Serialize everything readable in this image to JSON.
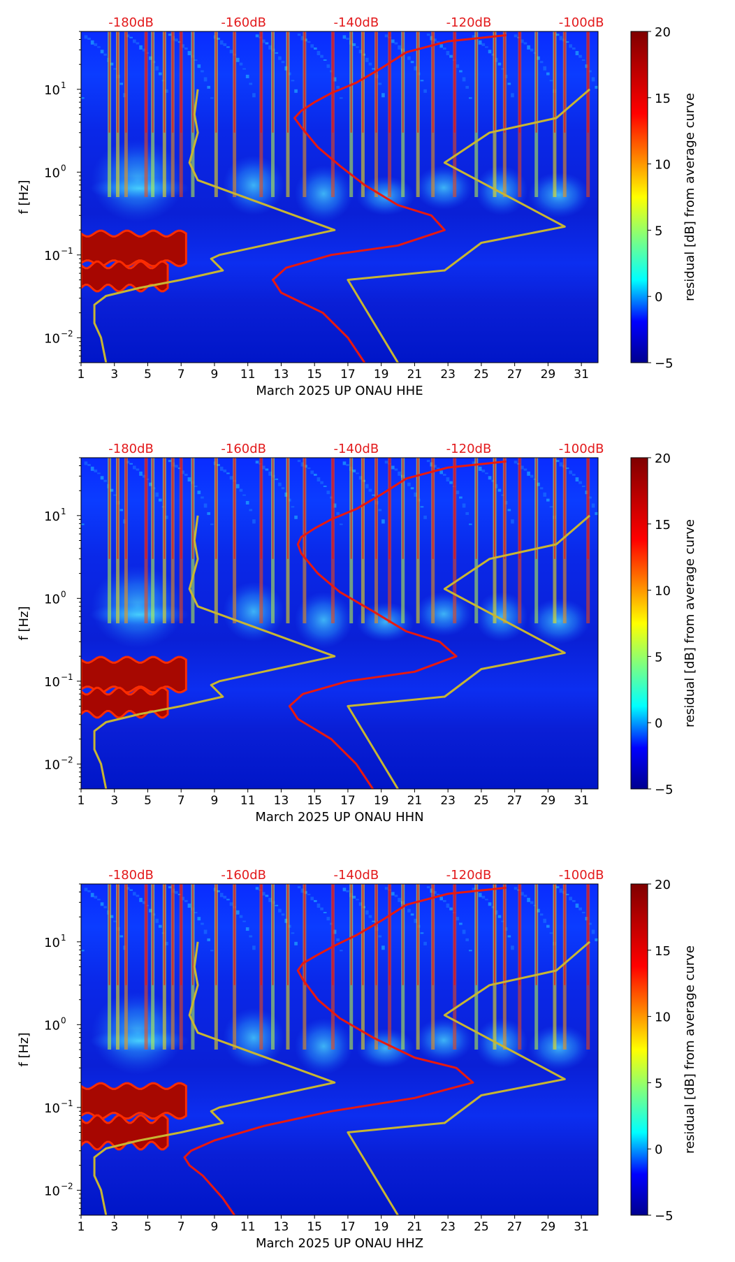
{
  "colors": {
    "background_low": "#00008b",
    "noise_model_lines": "#c8b632",
    "psd_curve": "#e8190f",
    "db_labels": "#e31a1c",
    "axis": "#000000",
    "storm_band": "#a40000"
  },
  "colorbar": {
    "label": "residual [dB] from average curve",
    "min": -5,
    "max": 20,
    "ticks": [
      "20",
      "15",
      "10",
      "5",
      "0",
      "−5"
    ],
    "stops": [
      {
        "v": -5,
        "c": "#00008f"
      },
      {
        "v": -1.9,
        "c": "#0000ff"
      },
      {
        "v": 1.25,
        "c": "#00ffff"
      },
      {
        "v": 4.4,
        "c": "#7fff7f"
      },
      {
        "v": 7.5,
        "c": "#ffff00"
      },
      {
        "v": 10.6,
        "c": "#ff7f00"
      },
      {
        "v": 13.8,
        "c": "#ff0000"
      },
      {
        "v": 20,
        "c": "#7f0000"
      }
    ]
  },
  "chart_data": [
    {
      "type": "heatmap",
      "title": "",
      "xlabel": "March 2025 UP ONAU  HHE",
      "ylabel": "f [Hz]",
      "x_ticks": [
        "1",
        "3",
        "5",
        "7",
        "9",
        "11",
        "13",
        "15",
        "17",
        "19",
        "21",
        "23",
        "25",
        "27",
        "29",
        "31"
      ],
      "y_ticks": [
        {
          "value": 10,
          "label": "10",
          "exp": "1"
        },
        {
          "value": 1,
          "label": "10",
          "exp": "0"
        },
        {
          "value": 0.1,
          "label": "10",
          "exp": "−1"
        },
        {
          "value": 0.01,
          "label": "10",
          "exp": "−2"
        }
      ],
      "xlim": [
        1,
        32
      ],
      "ylim": [
        0.005,
        50
      ],
      "top_labels": [
        "-180dB",
        "-160dB",
        "-140dB",
        "-120dB",
        "-100dB"
      ],
      "noise_model_low": [
        [
          2.5,
          0.005
        ],
        [
          2.2,
          0.01
        ],
        [
          1.8,
          0.015
        ],
        [
          1.8,
          0.025
        ],
        [
          2.5,
          0.032
        ],
        [
          4.5,
          0.04
        ],
        [
          7.0,
          0.05
        ],
        [
          9.5,
          0.065
        ],
        [
          8.8,
          0.09
        ],
        [
          9.3,
          0.1
        ],
        [
          16.2,
          0.2
        ],
        [
          8.0,
          0.8
        ],
        [
          7.5,
          1.3
        ],
        [
          8.0,
          3.0
        ],
        [
          7.8,
          5.0
        ],
        [
          8.0,
          10.0
        ]
      ],
      "noise_model_high": [
        [
          20.0,
          0.005
        ],
        [
          17.0,
          0.05
        ],
        [
          22.8,
          0.065
        ],
        [
          25.0,
          0.14
        ],
        [
          30.0,
          0.22
        ],
        [
          22.8,
          1.3
        ],
        [
          25.5,
          3.0
        ],
        [
          29.5,
          4.5
        ],
        [
          31.5,
          10.0
        ]
      ],
      "psd_curve": [
        [
          18.0,
          0.005
        ],
        [
          17.0,
          0.01
        ],
        [
          15.5,
          0.02
        ],
        [
          13.0,
          0.035
        ],
        [
          12.5,
          0.05
        ],
        [
          13.3,
          0.07
        ],
        [
          16.0,
          0.1
        ],
        [
          20.0,
          0.13
        ],
        [
          22.8,
          0.2
        ],
        [
          22.0,
          0.3
        ],
        [
          20.0,
          0.4
        ],
        [
          18.0,
          0.7
        ],
        [
          16.5,
          1.2
        ],
        [
          15.2,
          2.0
        ],
        [
          14.2,
          3.5
        ],
        [
          13.8,
          4.5
        ],
        [
          14.2,
          5.5
        ],
        [
          15.0,
          7.0
        ],
        [
          16.0,
          9.0
        ],
        [
          17.5,
          12.0
        ],
        [
          19.0,
          18.0
        ],
        [
          20.5,
          28.0
        ],
        [
          23.0,
          38.0
        ],
        [
          26.5,
          45.0
        ]
      ],
      "storm_bands": [
        {
          "x0": 1,
          "x1": 7.3,
          "f": 0.12,
          "h": 0.18,
          "amp": 0.2
        },
        {
          "x0": 1,
          "x1": 6.2,
          "f": 0.055,
          "h": 0.14,
          "amp": 0.3
        }
      ],
      "vertical_events": [
        2.7,
        3.2,
        3.7,
        4.9,
        5.3,
        6.0,
        6.5,
        7.0,
        7.7,
        9.1,
        10.2,
        11.8,
        12.5,
        13.4,
        14.4,
        16.1,
        17.2,
        17.9,
        18.7,
        19.5,
        20.3,
        21.2,
        22.1,
        23.4,
        24.7,
        25.8,
        26.4,
        27.3,
        28.3,
        29.4,
        30.0,
        31.4
      ]
    },
    {
      "type": "heatmap",
      "title": "",
      "xlabel": "March 2025 UP ONAU  HHN",
      "ylabel": "f [Hz]",
      "x_ticks": [
        "1",
        "3",
        "5",
        "7",
        "9",
        "11",
        "13",
        "15",
        "17",
        "19",
        "21",
        "23",
        "25",
        "27",
        "29",
        "31"
      ],
      "y_ticks": [
        {
          "value": 10,
          "label": "10",
          "exp": "1"
        },
        {
          "value": 1,
          "label": "10",
          "exp": "0"
        },
        {
          "value": 0.1,
          "label": "10",
          "exp": "−1"
        },
        {
          "value": 0.01,
          "label": "10",
          "exp": "−2"
        }
      ],
      "xlim": [
        1,
        32
      ],
      "ylim": [
        0.005,
        50
      ],
      "top_labels": [
        "-180dB",
        "-160dB",
        "-140dB",
        "-120dB",
        "-100dB"
      ],
      "noise_model_low": [
        [
          2.5,
          0.005
        ],
        [
          2.2,
          0.01
        ],
        [
          1.8,
          0.015
        ],
        [
          1.8,
          0.025
        ],
        [
          2.5,
          0.032
        ],
        [
          4.5,
          0.04
        ],
        [
          7.0,
          0.05
        ],
        [
          9.5,
          0.065
        ],
        [
          8.8,
          0.09
        ],
        [
          9.3,
          0.1
        ],
        [
          16.2,
          0.2
        ],
        [
          8.0,
          0.8
        ],
        [
          7.5,
          1.3
        ],
        [
          8.0,
          3.0
        ],
        [
          7.8,
          5.0
        ],
        [
          8.0,
          10.0
        ]
      ],
      "noise_model_high": [
        [
          20.0,
          0.005
        ],
        [
          17.0,
          0.05
        ],
        [
          22.8,
          0.065
        ],
        [
          25.0,
          0.14
        ],
        [
          30.0,
          0.22
        ],
        [
          22.8,
          1.3
        ],
        [
          25.5,
          3.0
        ],
        [
          29.5,
          4.5
        ],
        [
          31.5,
          10.0
        ]
      ],
      "psd_curve": [
        [
          18.5,
          0.005
        ],
        [
          17.5,
          0.01
        ],
        [
          16.0,
          0.02
        ],
        [
          14.0,
          0.035
        ],
        [
          13.5,
          0.05
        ],
        [
          14.3,
          0.07
        ],
        [
          17.0,
          0.1
        ],
        [
          21.0,
          0.13
        ],
        [
          23.5,
          0.2
        ],
        [
          22.5,
          0.3
        ],
        [
          20.5,
          0.4
        ],
        [
          18.5,
          0.7
        ],
        [
          16.5,
          1.2
        ],
        [
          15.2,
          2.0
        ],
        [
          14.2,
          3.5
        ],
        [
          14.0,
          4.5
        ],
        [
          14.2,
          5.5
        ],
        [
          15.0,
          7.0
        ],
        [
          16.0,
          9.0
        ],
        [
          17.5,
          12.0
        ],
        [
          19.0,
          18.0
        ],
        [
          20.5,
          28.0
        ],
        [
          23.0,
          38.0
        ],
        [
          26.5,
          45.0
        ]
      ],
      "storm_bands": [
        {
          "x0": 1,
          "x1": 7.3,
          "f": 0.12,
          "h": 0.18,
          "amp": 0.2
        },
        {
          "x0": 1,
          "x1": 6.2,
          "f": 0.055,
          "h": 0.14,
          "amp": 0.3
        }
      ],
      "vertical_events": [
        2.7,
        3.2,
        3.7,
        4.9,
        5.3,
        6.0,
        6.5,
        7.0,
        7.7,
        9.1,
        10.2,
        11.8,
        12.5,
        13.4,
        14.4,
        16.1,
        17.2,
        17.9,
        18.7,
        19.5,
        20.3,
        21.2,
        22.1,
        23.4,
        24.7,
        25.8,
        26.4,
        27.3,
        28.3,
        29.4,
        30.0,
        31.4
      ]
    },
    {
      "type": "heatmap",
      "title": "",
      "xlabel": "March 2025 UP ONAU  HHZ",
      "ylabel": "f [Hz]",
      "x_ticks": [
        "1",
        "3",
        "5",
        "7",
        "9",
        "11",
        "13",
        "15",
        "17",
        "19",
        "21",
        "23",
        "25",
        "27",
        "29",
        "31"
      ],
      "y_ticks": [
        {
          "value": 10,
          "label": "10",
          "exp": "1"
        },
        {
          "value": 1,
          "label": "10",
          "exp": "0"
        },
        {
          "value": 0.1,
          "label": "10",
          "exp": "−1"
        },
        {
          "value": 0.01,
          "label": "10",
          "exp": "−2"
        }
      ],
      "xlim": [
        1,
        32
      ],
      "ylim": [
        0.005,
        50
      ],
      "top_labels": [
        "-180dB",
        "-160dB",
        "-140dB",
        "-120dB",
        "-100dB"
      ],
      "noise_model_low": [
        [
          2.5,
          0.005
        ],
        [
          2.2,
          0.01
        ],
        [
          1.8,
          0.015
        ],
        [
          1.8,
          0.025
        ],
        [
          2.5,
          0.032
        ],
        [
          4.5,
          0.04
        ],
        [
          7.0,
          0.05
        ],
        [
          9.5,
          0.065
        ],
        [
          8.8,
          0.09
        ],
        [
          9.3,
          0.1
        ],
        [
          16.2,
          0.2
        ],
        [
          8.0,
          0.8
        ],
        [
          7.5,
          1.3
        ],
        [
          8.0,
          3.0
        ],
        [
          7.8,
          5.0
        ],
        [
          8.0,
          10.0
        ]
      ],
      "noise_model_high": [
        [
          20.0,
          0.005
        ],
        [
          17.0,
          0.05
        ],
        [
          22.8,
          0.065
        ],
        [
          25.0,
          0.14
        ],
        [
          30.0,
          0.22
        ],
        [
          22.8,
          1.3
        ],
        [
          25.5,
          3.0
        ],
        [
          29.5,
          4.5
        ],
        [
          31.5,
          10.0
        ]
      ],
      "psd_curve": [
        [
          10.2,
          0.005
        ],
        [
          9.5,
          0.008
        ],
        [
          8.3,
          0.015
        ],
        [
          7.5,
          0.02
        ],
        [
          7.2,
          0.025
        ],
        [
          7.6,
          0.03
        ],
        [
          9.0,
          0.04
        ],
        [
          12.0,
          0.06
        ],
        [
          16.0,
          0.09
        ],
        [
          21.0,
          0.13
        ],
        [
          24.5,
          0.2
        ],
        [
          23.5,
          0.3
        ],
        [
          21.0,
          0.4
        ],
        [
          18.5,
          0.7
        ],
        [
          16.5,
          1.2
        ],
        [
          15.2,
          2.0
        ],
        [
          14.3,
          3.5
        ],
        [
          14.0,
          4.5
        ],
        [
          14.3,
          5.5
        ],
        [
          15.2,
          7.0
        ],
        [
          16.2,
          9.0
        ],
        [
          17.5,
          12.0
        ],
        [
          19.0,
          18.0
        ],
        [
          20.5,
          28.0
        ],
        [
          23.0,
          38.0
        ],
        [
          26.5,
          45.0
        ]
      ],
      "storm_bands": [
        {
          "x0": 1,
          "x1": 7.3,
          "f": 0.12,
          "h": 0.18,
          "amp": 0.2
        },
        {
          "x0": 1,
          "x1": 6.2,
          "f": 0.05,
          "h": 0.16,
          "amp": 0.3
        }
      ],
      "vertical_events": [
        2.7,
        3.2,
        3.7,
        4.9,
        5.3,
        6.0,
        6.5,
        7.0,
        7.7,
        9.1,
        10.2,
        11.8,
        12.5,
        13.4,
        14.4,
        16.1,
        17.2,
        17.9,
        18.7,
        19.5,
        20.3,
        21.2,
        22.1,
        23.4,
        24.7,
        25.8,
        26.4,
        27.3,
        28.3,
        29.4,
        30.0,
        31.4
      ]
    }
  ]
}
